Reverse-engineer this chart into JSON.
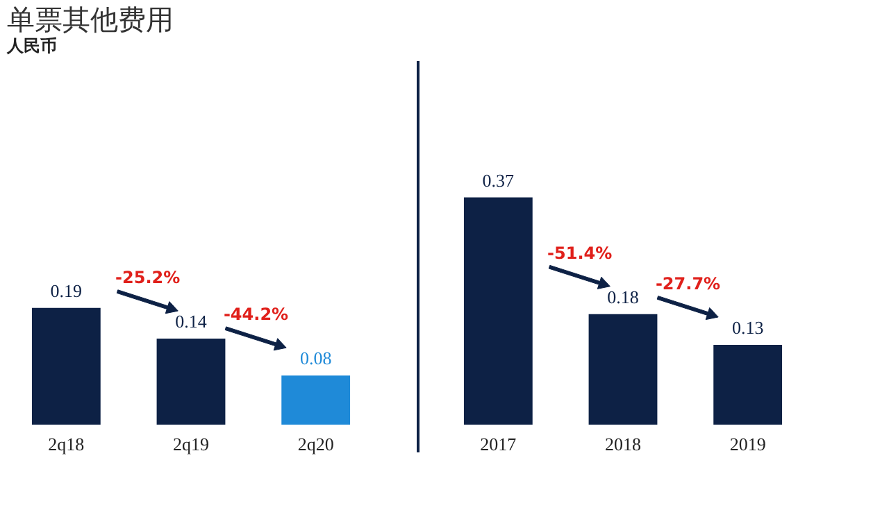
{
  "chart_data": [
    {
      "type": "bar",
      "title": "单票其他费用",
      "subtitle": "人民币",
      "categories": [
        "2q18",
        "2q19",
        "2q20"
      ],
      "values": [
        0.19,
        0.14,
        0.08
      ],
      "colors": [
        "#0d2145",
        "#0d2145",
        "#1f8ad8"
      ],
      "data_labels": true,
      "tick_labels": "x",
      "annotations": [
        "-25.2%",
        "-44.2%"
      ]
    },
    {
      "type": "bar",
      "categories": [
        "2017",
        "2018",
        "2019"
      ],
      "values": [
        0.37,
        0.18,
        0.13
      ],
      "colors": [
        "#0d2145",
        "#0d2145",
        "#0d2145"
      ],
      "data_labels": true,
      "tick_labels": "x",
      "annotations": [
        "-51.4%",
        "-27.7%"
      ]
    }
  ]
}
